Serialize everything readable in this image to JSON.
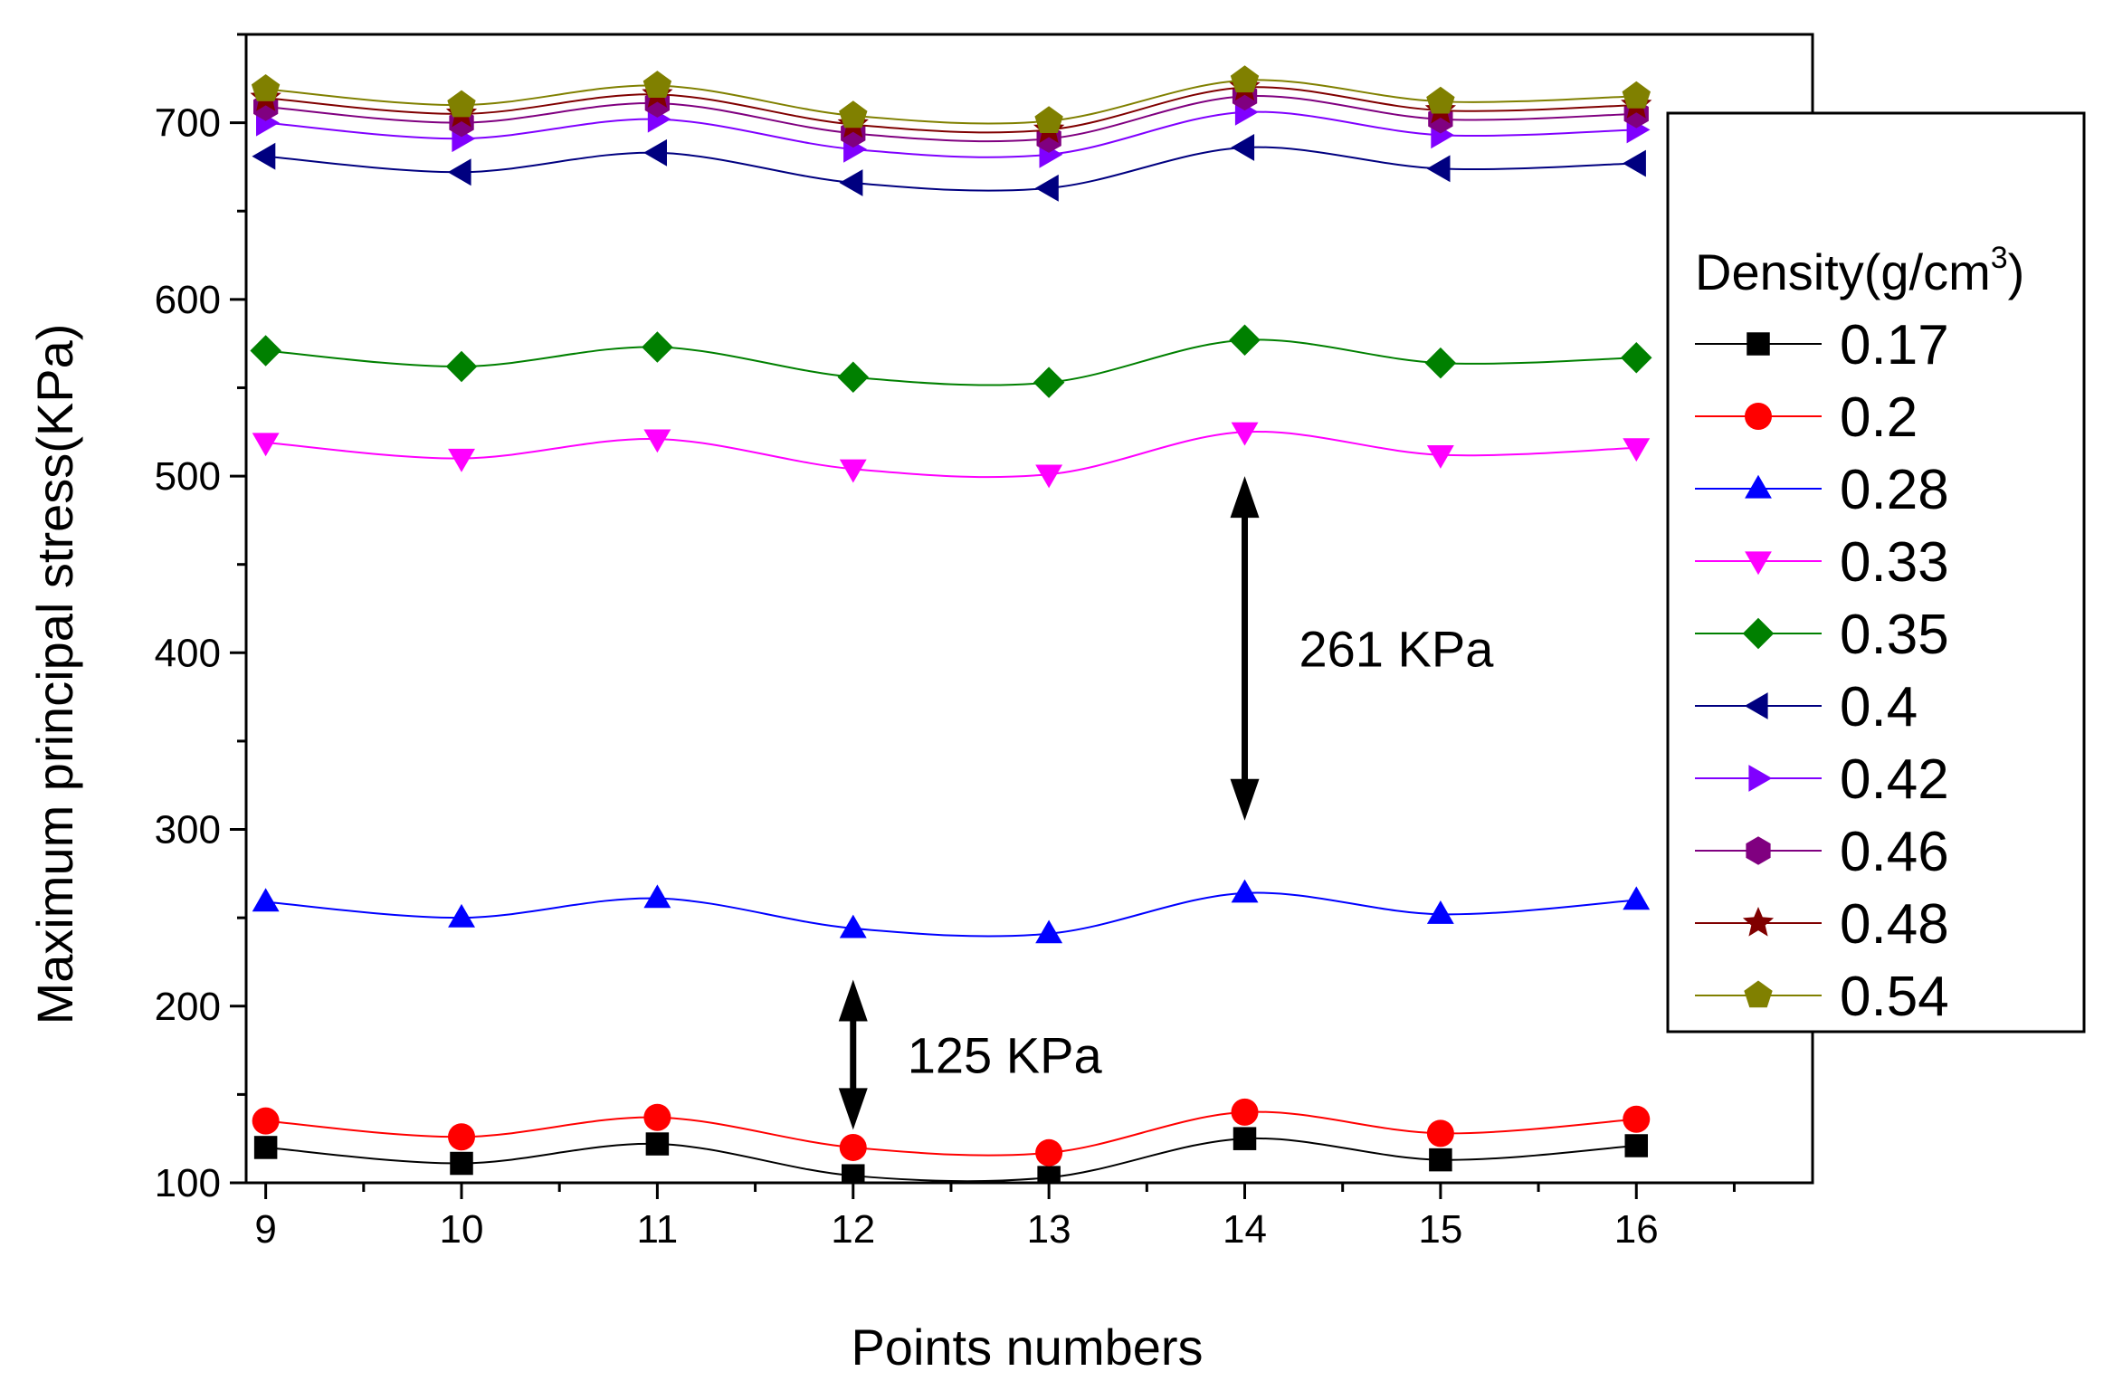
{
  "chart_data": {
    "type": "line",
    "xlabel": "Points numbers",
    "ylabel": "Maximum principal stress(KPa)",
    "xlim": [
      8.9,
      16.9
    ],
    "ylim": [
      100,
      750
    ],
    "x": [
      9,
      10,
      11,
      12,
      13,
      14,
      15,
      16
    ],
    "xticks": [
      "9",
      "10",
      "11",
      "12",
      "13",
      "14",
      "15",
      "16"
    ],
    "yticks": [
      "100",
      "200",
      "300",
      "400",
      "500",
      "600",
      "700"
    ],
    "legend": {
      "title_prefix": "Density(g/cm",
      "title_sup": "3",
      "title_suffix": ")",
      "placement": "right"
    },
    "series": [
      {
        "name": "0.17",
        "color": "#000000",
        "marker": "square",
        "values": [
          120,
          111,
          122,
          104,
          103,
          125,
          113,
          121
        ]
      },
      {
        "name": "0.2",
        "color": "#ff0000",
        "marker": "circle",
        "values": [
          135,
          126,
          137,
          120,
          117,
          140,
          128,
          136
        ]
      },
      {
        "name": "0.28",
        "color": "#0000ff",
        "marker": "triangle-up",
        "values": [
          259,
          250,
          261,
          244,
          241,
          264,
          252,
          260
        ]
      },
      {
        "name": "0.33",
        "color": "#ff00ff",
        "marker": "triangle-down",
        "values": [
          519,
          510,
          521,
          504,
          501,
          525,
          512,
          516
        ]
      },
      {
        "name": "0.35",
        "color": "#008000",
        "marker": "diamond",
        "values": [
          571,
          562,
          573,
          556,
          553,
          577,
          564,
          567
        ]
      },
      {
        "name": "0.4",
        "color": "#000080",
        "marker": "triangle-left",
        "values": [
          681,
          672,
          683,
          666,
          663,
          686,
          674,
          677
        ]
      },
      {
        "name": "0.42",
        "color": "#8000ff",
        "marker": "triangle-right",
        "values": [
          700,
          691,
          702,
          685,
          682,
          706,
          693,
          696
        ]
      },
      {
        "name": "0.46",
        "color": "#800080",
        "marker": "hexagon",
        "values": [
          709,
          700,
          711,
          694,
          691,
          715,
          702,
          705
        ]
      },
      {
        "name": "0.48",
        "color": "#800000",
        "marker": "star",
        "values": [
          714,
          705,
          716,
          699,
          696,
          720,
          707,
          710
        ]
      },
      {
        "name": "0.54",
        "color": "#808000",
        "marker": "pentagon",
        "values": [
          719,
          710,
          721,
          704,
          701,
          724,
          712,
          715
        ]
      }
    ],
    "annotations": [
      {
        "text": "261 KPa",
        "x": 14,
        "y_from": 500,
        "y_to": 305
      },
      {
        "text": "125 KPa",
        "x": 12,
        "y_from": 215,
        "y_to": 130
      }
    ]
  }
}
